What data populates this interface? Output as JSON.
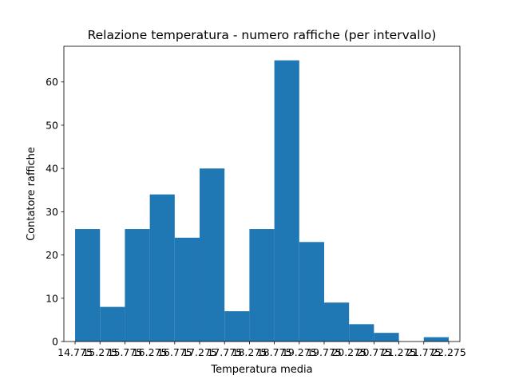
{
  "chart_data": {
    "type": "bar",
    "title": "Relazione temperatura - numero raffiche (per intervallo)",
    "xlabel": "Temperatura media",
    "ylabel": "Contatore raffiche",
    "bar_color": "#1f77b4",
    "x_tick_labels": [
      "14.775",
      "15.275",
      "15.775",
      "16.275",
      "16.775",
      "17.275",
      "17.775",
      "18.275",
      "18.775",
      "19.275",
      "19.775",
      "20.275",
      "20.775",
      "21.275",
      "21.775",
      "22.275"
    ],
    "bins": [
      {
        "start": 14.775,
        "end": 15.275,
        "count": 26
      },
      {
        "start": 15.275,
        "end": 15.775,
        "count": 8
      },
      {
        "start": 15.775,
        "end": 16.275,
        "count": 26
      },
      {
        "start": 16.275,
        "end": 16.775,
        "count": 34
      },
      {
        "start": 16.775,
        "end": 17.275,
        "count": 24
      },
      {
        "start": 17.275,
        "end": 17.775,
        "count": 40
      },
      {
        "start": 17.775,
        "end": 18.275,
        "count": 7
      },
      {
        "start": 18.275,
        "end": 18.775,
        "count": 26
      },
      {
        "start": 18.775,
        "end": 19.275,
        "count": 65
      },
      {
        "start": 19.275,
        "end": 19.775,
        "count": 23
      },
      {
        "start": 19.775,
        "end": 20.275,
        "count": 9
      },
      {
        "start": 20.275,
        "end": 20.775,
        "count": 4
      },
      {
        "start": 20.775,
        "end": 21.275,
        "count": 2
      },
      {
        "start": 21.275,
        "end": 21.775,
        "count": 0
      },
      {
        "start": 21.775,
        "end": 22.275,
        "count": 1
      }
    ],
    "y_ticks": [
      0,
      10,
      20,
      30,
      40,
      50,
      60
    ],
    "xlim": [
      14.55,
      22.5
    ],
    "ylim": [
      0,
      68.25
    ],
    "grid": false,
    "legend": "none"
  }
}
